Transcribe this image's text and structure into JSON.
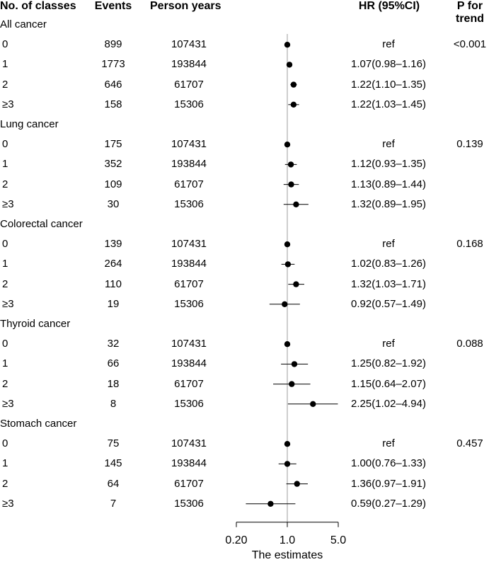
{
  "headers": {
    "classes": "No. of classes",
    "events": "Events",
    "person_years": "Person years",
    "hr": "HR (95%CI)",
    "p_trend": "P for trend"
  },
  "chart_data": {
    "type": "forest",
    "x_scale": "log",
    "reference_line": 1.0,
    "xlim": [
      0.2,
      5.0
    ],
    "x_ticks": [
      "0.20",
      "1.0",
      "5.0"
    ],
    "xlabel": "The estimates",
    "groups": [
      {
        "name": "All cancer",
        "p_for_trend": "<0.001",
        "rows": [
          {
            "label": "0",
            "events": "899",
            "person_years": "107431",
            "hr_text": "ref",
            "hr": 1.0,
            "lo": 1.0,
            "hi": 1.0
          },
          {
            "label": "1",
            "events": "1773",
            "person_years": "193844",
            "hr_text": "1.07(0.98–1.16)",
            "hr": 1.07,
            "lo": 0.98,
            "hi": 1.16
          },
          {
            "label": "2",
            "events": "646",
            "person_years": "61707",
            "hr_text": "1.22(1.10–1.35)",
            "hr": 1.22,
            "lo": 1.1,
            "hi": 1.35
          },
          {
            "label": "≥3",
            "events": "158",
            "person_years": "15306",
            "hr_text": "1.22(1.03–1.45)",
            "hr": 1.22,
            "lo": 1.03,
            "hi": 1.45
          }
        ]
      },
      {
        "name": "Lung cancer",
        "p_for_trend": "0.139",
        "rows": [
          {
            "label": "0",
            "events": "175",
            "person_years": "107431",
            "hr_text": "ref",
            "hr": 1.0,
            "lo": 1.0,
            "hi": 1.0
          },
          {
            "label": "1",
            "events": "352",
            "person_years": "193844",
            "hr_text": "1.12(0.93–1.35)",
            "hr": 1.12,
            "lo": 0.93,
            "hi": 1.35
          },
          {
            "label": "2",
            "events": "109",
            "person_years": "61707",
            "hr_text": "1.13(0.89–1.44)",
            "hr": 1.13,
            "lo": 0.89,
            "hi": 1.44
          },
          {
            "label": "≥3",
            "events": "30",
            "person_years": "15306",
            "hr_text": "1.32(0.89–1.95)",
            "hr": 1.32,
            "lo": 0.89,
            "hi": 1.95
          }
        ]
      },
      {
        "name": "Colorectal cancer",
        "p_for_trend": "0.168",
        "rows": [
          {
            "label": "0",
            "events": "139",
            "person_years": "107431",
            "hr_text": "ref",
            "hr": 1.0,
            "lo": 1.0,
            "hi": 1.0
          },
          {
            "label": "1",
            "events": "264",
            "person_years": "193844",
            "hr_text": "1.02(0.83–1.26)",
            "hr": 1.02,
            "lo": 0.83,
            "hi": 1.26
          },
          {
            "label": "2",
            "events": "110",
            "person_years": "61707",
            "hr_text": "1.32(1.03–1.71)",
            "hr": 1.32,
            "lo": 1.03,
            "hi": 1.71
          },
          {
            "label": "≥3",
            "events": "19",
            "person_years": "15306",
            "hr_text": "0.92(0.57–1.49)",
            "hr": 0.92,
            "lo": 0.57,
            "hi": 1.49
          }
        ]
      },
      {
        "name": "Thyroid cancer",
        "p_for_trend": "0.088",
        "rows": [
          {
            "label": "0",
            "events": "32",
            "person_years": "107431",
            "hr_text": "ref",
            "hr": 1.0,
            "lo": 1.0,
            "hi": 1.0
          },
          {
            "label": "1",
            "events": "66",
            "person_years": "193844",
            "hr_text": "1.25(0.82–1.92)",
            "hr": 1.25,
            "lo": 0.82,
            "hi": 1.92
          },
          {
            "label": "2",
            "events": "18",
            "person_years": "61707",
            "hr_text": "1.15(0.64–2.07)",
            "hr": 1.15,
            "lo": 0.64,
            "hi": 2.07
          },
          {
            "label": "≥3",
            "events": "8",
            "person_years": "15306",
            "hr_text": "2.25(1.02–4.94)",
            "hr": 2.25,
            "lo": 1.02,
            "hi": 4.94
          }
        ]
      },
      {
        "name": "Stomach cancer",
        "p_for_trend": "0.457",
        "rows": [
          {
            "label": "0",
            "events": "75",
            "person_years": "107431",
            "hr_text": "ref",
            "hr": 1.0,
            "lo": 1.0,
            "hi": 1.0
          },
          {
            "label": "1",
            "events": "145",
            "person_years": "193844",
            "hr_text": "1.00(0.76–1.33)",
            "hr": 1.0,
            "lo": 0.76,
            "hi": 1.33
          },
          {
            "label": "2",
            "events": "64",
            "person_years": "61707",
            "hr_text": "1.36(0.97–1.91)",
            "hr": 1.36,
            "lo": 0.97,
            "hi": 1.91
          },
          {
            "label": "≥3",
            "events": "7",
            "person_years": "15306",
            "hr_text": "0.59(0.27–1.29)",
            "hr": 0.59,
            "lo": 0.27,
            "hi": 1.29
          }
        ]
      }
    ]
  }
}
